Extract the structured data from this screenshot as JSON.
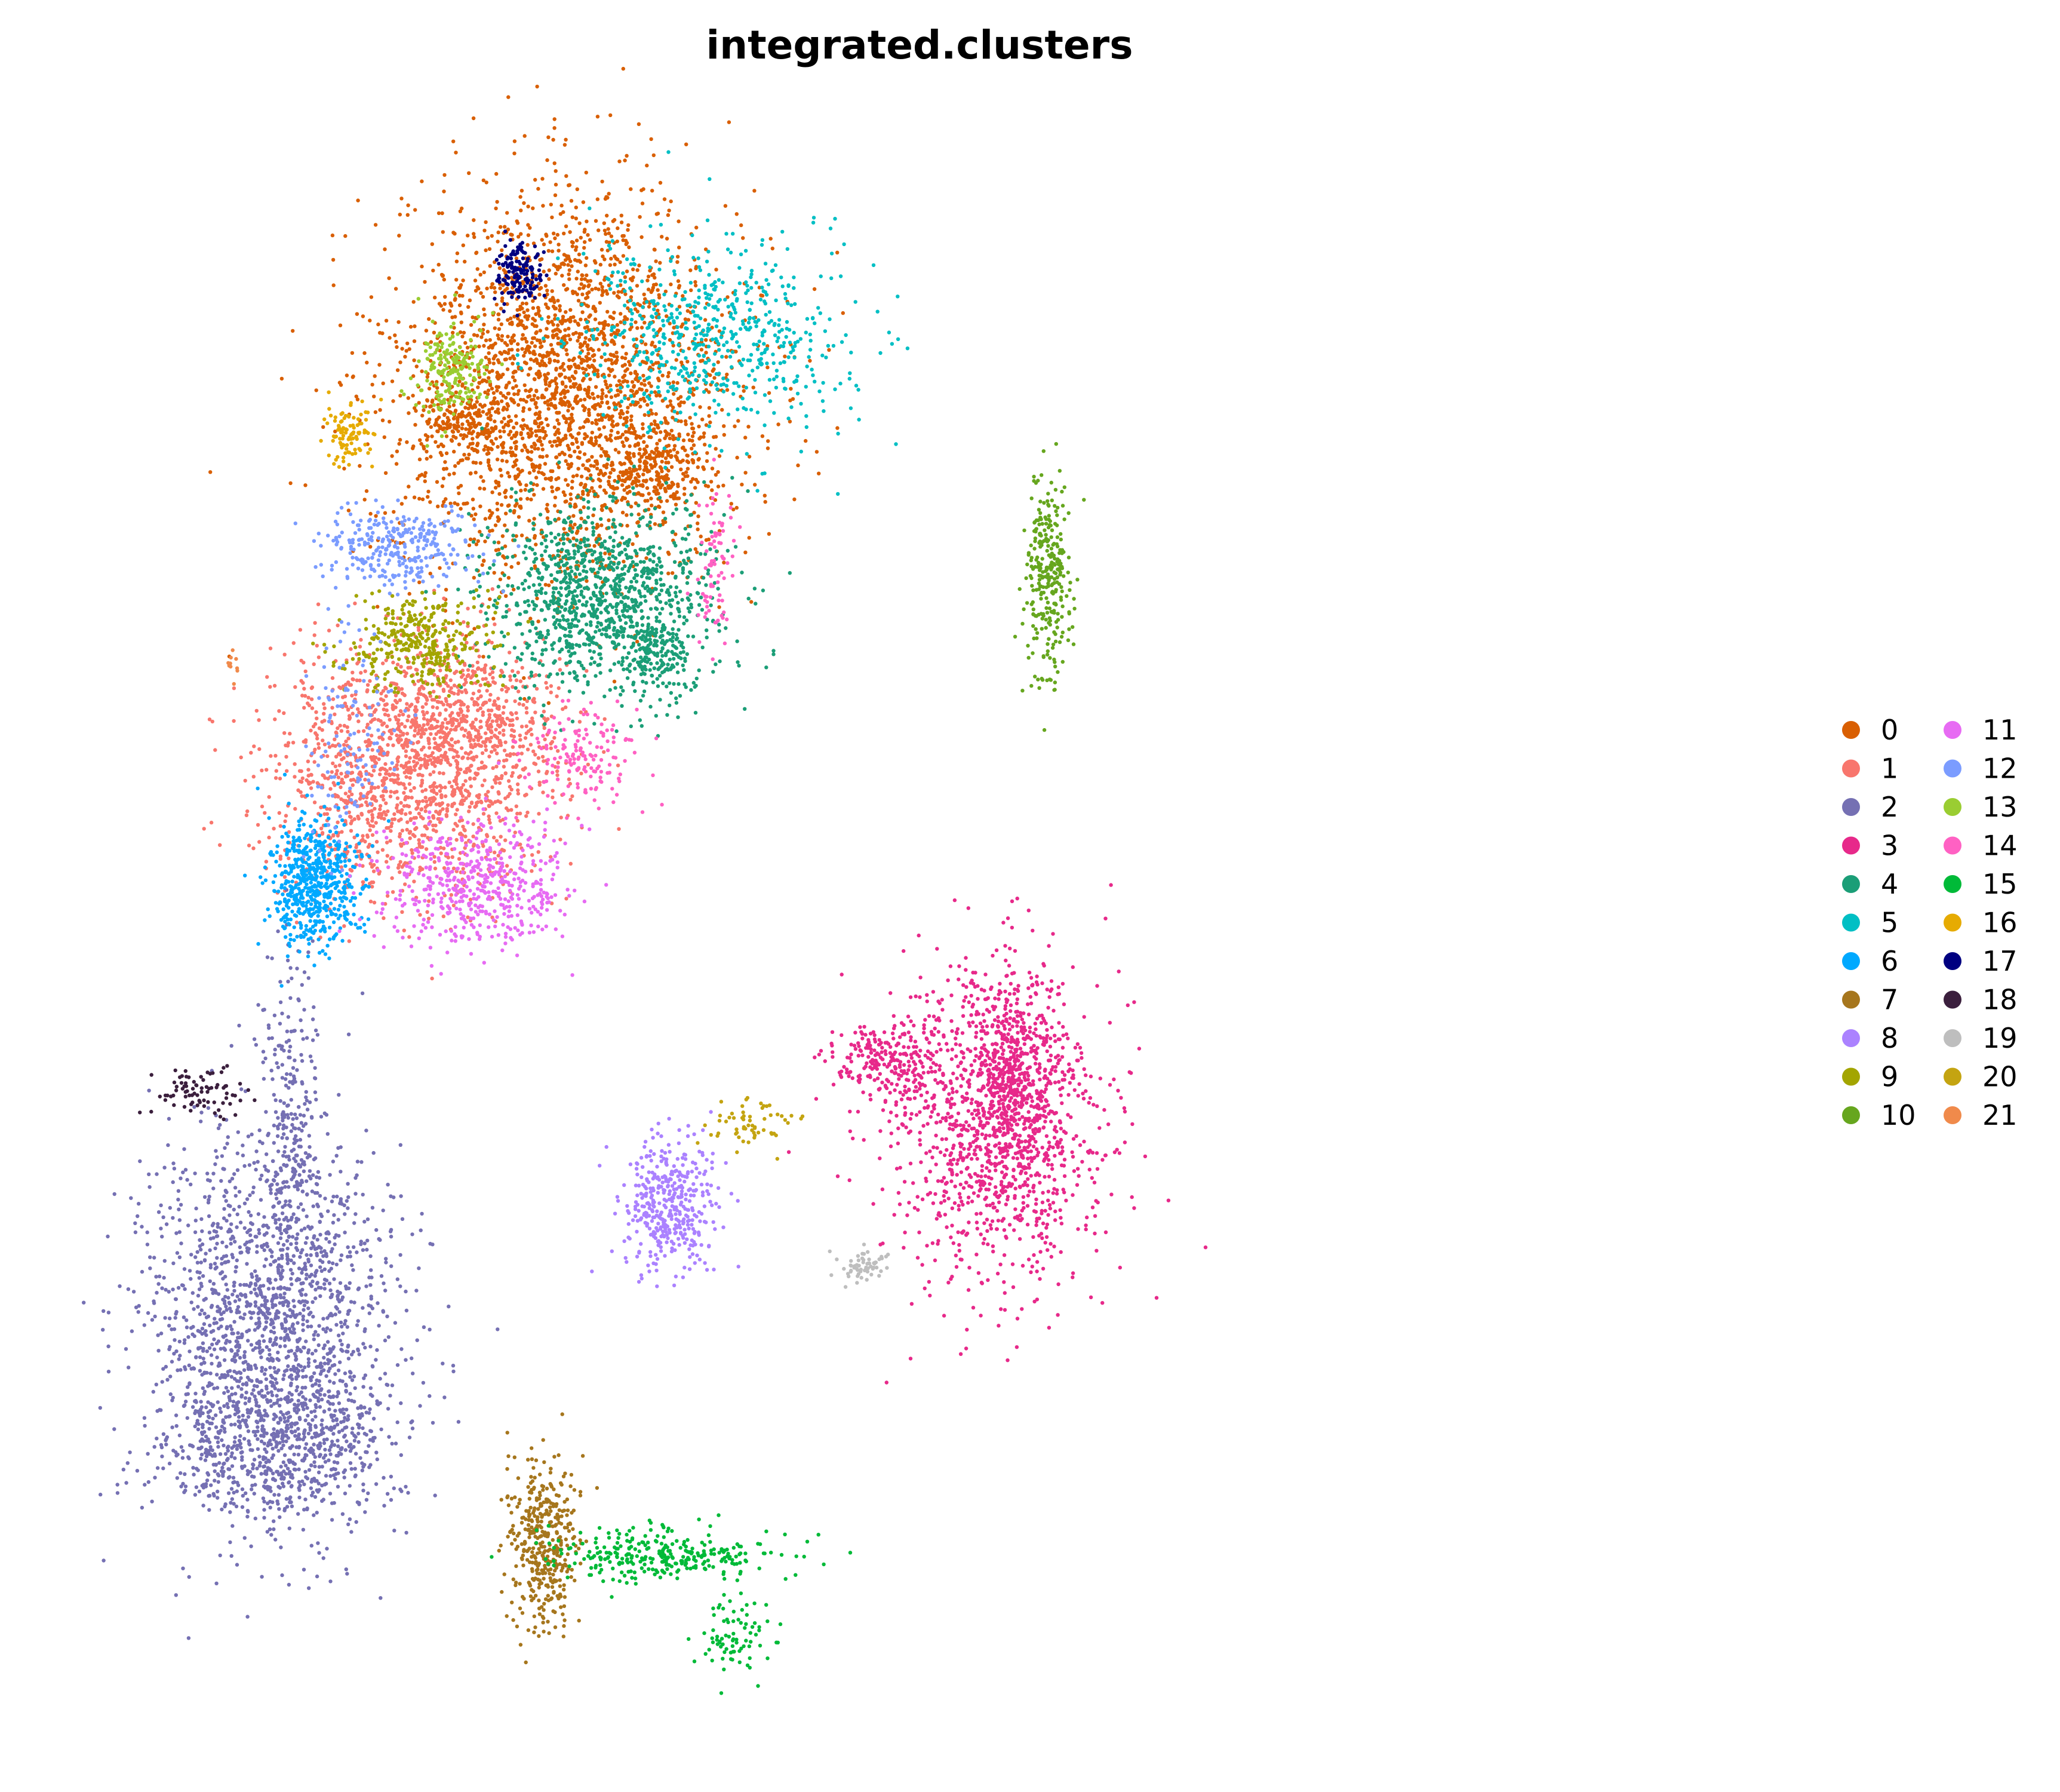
{
  "chart_data": {
    "type": "scatter",
    "title": "integrated.clusters",
    "xlabel": "",
    "ylabel": "",
    "axes_visible": false,
    "grid": false,
    "legend_position": "right",
    "legend_columns": 2,
    "point_size": "small",
    "xlim": [
      0,
      100
    ],
    "ylim": [
      0,
      100
    ],
    "series": [
      {
        "name": "0",
        "color": "#D95F02",
        "blobs": [
          {
            "cx": 40,
            "cy": 84,
            "sx": 7.5,
            "sy": 6.0,
            "n": 2600
          },
          {
            "cx": 31,
            "cy": 82,
            "sx": 2.0,
            "sy": 1.2,
            "n": 160
          },
          {
            "cx": 48,
            "cy": 79,
            "sx": 2.5,
            "sy": 1.3,
            "n": 200
          }
        ]
      },
      {
        "name": "1",
        "color": "#F8766D",
        "blobs": [
          {
            "cx": 26,
            "cy": 60,
            "sx": 6.0,
            "sy": 3.8,
            "n": 1400
          },
          {
            "cx": 32,
            "cy": 63,
            "sx": 4.0,
            "sy": 2.5,
            "n": 450
          }
        ]
      },
      {
        "name": "2",
        "color": "#7570B3",
        "blobs": [
          {
            "cx": 14,
            "cy": 25,
            "sx": 5.5,
            "sy": 6.0,
            "n": 1800
          },
          {
            "cx": 15,
            "cy": 18,
            "sx": 5.0,
            "sy": 2.0,
            "n": 500
          },
          {
            "cx": 16,
            "cy": 38,
            "sx": 1.2,
            "sy": 5.0,
            "n": 250
          }
        ]
      },
      {
        "name": "3",
        "color": "#E7298A",
        "blobs": [
          {
            "cx": 77,
            "cy": 38,
            "sx": 5.0,
            "sy": 5.0,
            "n": 1100
          },
          {
            "cx": 79,
            "cy": 40,
            "sx": 2.0,
            "sy": 4.0,
            "n": 500
          },
          {
            "cx": 68,
            "cy": 42,
            "sx": 2.5,
            "sy": 1.2,
            "n": 220
          }
        ]
      },
      {
        "name": "4",
        "color": "#1B9E77",
        "blobs": [
          {
            "cx": 43,
            "cy": 71,
            "sx": 5.0,
            "sy": 3.0,
            "n": 1100
          },
          {
            "cx": 48,
            "cy": 67,
            "sx": 1.5,
            "sy": 1.5,
            "n": 150
          }
        ]
      },
      {
        "name": "5",
        "color": "#00BFC4",
        "blobs": [
          {
            "cx": 53,
            "cy": 87,
            "sx": 6.0,
            "sy": 3.0,
            "n": 600
          }
        ]
      },
      {
        "name": "6",
        "color": "#00A9FF",
        "blobs": [
          {
            "cx": 18,
            "cy": 53,
            "sx": 2.0,
            "sy": 2.0,
            "n": 600
          }
        ]
      },
      {
        "name": "7",
        "color": "#A6761D",
        "blobs": [
          {
            "cx": 38,
            "cy": 12,
            "sx": 1.5,
            "sy": 2.5,
            "n": 400
          }
        ]
      },
      {
        "name": "8",
        "color": "#AB82FF",
        "blobs": [
          {
            "cx": 49,
            "cy": 33,
            "sx": 2.0,
            "sy": 2.0,
            "n": 400
          }
        ]
      },
      {
        "name": "9",
        "color": "#A3A500",
        "blobs": [
          {
            "cx": 27,
            "cy": 68,
            "sx": 3.0,
            "sy": 1.5,
            "n": 350
          }
        ]
      },
      {
        "name": "10",
        "color": "#66A61E",
        "blobs": [
          {
            "cx": 82,
            "cy": 72,
            "sx": 1.0,
            "sy": 3.0,
            "n": 300
          }
        ]
      },
      {
        "name": "11",
        "color": "#E76BF3",
        "blobs": [
          {
            "cx": 32,
            "cy": 53,
            "sx": 4.0,
            "sy": 2.0,
            "n": 500
          }
        ]
      },
      {
        "name": "12",
        "color": "#7B9CFF",
        "blobs": [
          {
            "cx": 25,
            "cy": 74,
            "sx": 3.5,
            "sy": 1.3,
            "n": 300
          },
          {
            "cx": 21,
            "cy": 62,
            "sx": 2.0,
            "sy": 4.0,
            "n": 120
          }
        ]
      },
      {
        "name": "13",
        "color": "#9ACD32",
        "blobs": [
          {
            "cx": 30,
            "cy": 85,
            "sx": 1.5,
            "sy": 1.5,
            "n": 200
          }
        ]
      },
      {
        "name": "14",
        "color": "#FF61C3",
        "blobs": [
          {
            "cx": 41,
            "cy": 61,
            "sx": 2.5,
            "sy": 1.5,
            "n": 150
          },
          {
            "cx": 53,
            "cy": 73,
            "sx": 0.8,
            "sy": 2.5,
            "n": 80
          }
        ]
      },
      {
        "name": "15",
        "color": "#00BA38",
        "blobs": [
          {
            "cx": 48,
            "cy": 11,
            "sx": 5.0,
            "sy": 0.8,
            "n": 300
          },
          {
            "cx": 55,
            "cy": 6,
            "sx": 1.5,
            "sy": 1.5,
            "n": 80
          }
        ]
      },
      {
        "name": "16",
        "color": "#E6AB02",
        "blobs": [
          {
            "cx": 21,
            "cy": 81,
            "sx": 1.0,
            "sy": 1.0,
            "n": 100
          }
        ]
      },
      {
        "name": "17",
        "color": "#000080",
        "blobs": [
          {
            "cx": 36,
            "cy": 91,
            "sx": 1.0,
            "sy": 1.0,
            "n": 150
          }
        ]
      },
      {
        "name": "18",
        "color": "#3B1F3D",
        "blobs": [
          {
            "cx": 8,
            "cy": 40,
            "sx": 2.0,
            "sy": 0.8,
            "n": 80
          }
        ]
      },
      {
        "name": "19",
        "color": "#BEBEBE",
        "blobs": [
          {
            "cx": 66,
            "cy": 29,
            "sx": 1.0,
            "sy": 0.5,
            "n": 60
          }
        ]
      },
      {
        "name": "20",
        "color": "#C4A411",
        "blobs": [
          {
            "cx": 56,
            "cy": 38,
            "sx": 2.0,
            "sy": 0.8,
            "n": 60
          }
        ]
      },
      {
        "name": "21",
        "color": "#F08A4B",
        "blobs": [
          {
            "cx": 11,
            "cy": 67,
            "sx": 0.5,
            "sy": 0.5,
            "n": 10
          }
        ]
      }
    ]
  }
}
